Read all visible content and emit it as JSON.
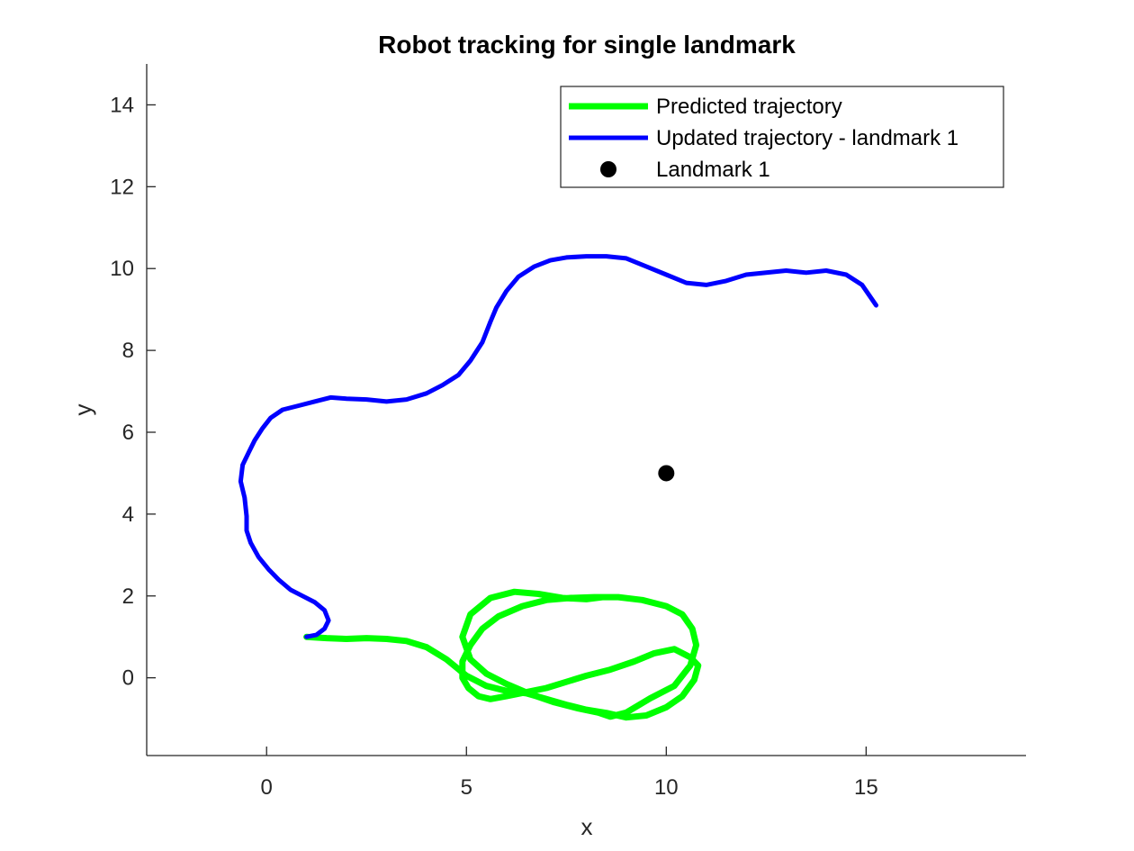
{
  "chart_data": {
    "type": "line",
    "title": "Robot tracking for single landmark",
    "xlabel": "x",
    "ylabel": "y",
    "xlim": [
      -3,
      19
    ],
    "ylim": [
      -1.9,
      15
    ],
    "xticks": [
      0,
      5,
      10,
      15
    ],
    "yticks": [
      0,
      2,
      4,
      6,
      8,
      10,
      12,
      14
    ],
    "grid": false,
    "legend_position": "top-right",
    "series": [
      {
        "name": "Predicted trajectory",
        "color": "#00ff00",
        "marker": "none",
        "x": [
          1,
          1.5,
          2,
          2.5,
          3,
          3.5,
          4,
          4.5,
          5,
          5.5,
          6,
          6.5,
          7,
          7.5,
          8,
          8.5,
          9,
          9.5,
          10,
          10.4,
          10.7,
          10.8,
          10.6,
          10.2,
          9.7,
          9.2,
          8.6,
          8,
          7.5,
          7,
          6.5,
          6,
          5.6,
          5.3,
          5.05,
          4.9,
          4.9,
          5.1,
          5.4,
          5.8,
          6.4,
          7,
          7.6,
          8.2,
          8.8,
          9.4,
          10,
          10.4,
          10.65,
          10.75,
          10.6,
          10.2,
          9.6,
          9,
          8.6,
          8.3,
          7.8,
          7.2,
          6.6,
          6,
          5.5,
          5.1,
          4.9,
          5.1,
          5.6,
          6.2,
          6.8,
          7.4,
          8,
          8.4
        ],
        "y": [
          1,
          0.97,
          0.95,
          0.97,
          0.95,
          0.9,
          0.75,
          0.45,
          0.05,
          -0.2,
          -0.32,
          -0.38,
          -0.52,
          -0.66,
          -0.78,
          -0.86,
          -0.97,
          -0.92,
          -0.72,
          -0.45,
          -0.05,
          0.3,
          0.5,
          0.7,
          0.6,
          0.4,
          0.2,
          0.05,
          -0.1,
          -0.25,
          -0.35,
          -0.45,
          -0.52,
          -0.45,
          -0.25,
          0,
          0.4,
          0.8,
          1.2,
          1.5,
          1.75,
          1.9,
          1.95,
          1.97,
          1.97,
          1.9,
          1.75,
          1.55,
          1.2,
          0.8,
          0.3,
          -0.2,
          -0.5,
          -0.85,
          -0.95,
          -0.85,
          -0.75,
          -0.6,
          -0.4,
          -0.15,
          0.1,
          0.45,
          1,
          1.55,
          1.95,
          2.1,
          2.05,
          1.95,
          1.92,
          1.97
        ]
      },
      {
        "name": "Updated trajectory - landmark 1",
        "color": "#0000ff",
        "marker": "none",
        "x": [
          1,
          1.25,
          1.45,
          1.55,
          1.45,
          1.2,
          0.9,
          0.6,
          0.3,
          0.05,
          -0.2,
          -0.4,
          -0.5,
          -0.5,
          -0.55,
          -0.65,
          -0.6,
          -0.45,
          -0.3,
          -0.1,
          0.1,
          0.4,
          0.8,
          1.2,
          1.6,
          2,
          2.5,
          3,
          3.5,
          4,
          4.4,
          4.8,
          5.1,
          5.4,
          5.6,
          5.75,
          6,
          6.3,
          6.7,
          7.1,
          7.5,
          8,
          8.5,
          9,
          9.5,
          10,
          10.5,
          11,
          11.5,
          12,
          12.5,
          13,
          13.5,
          14,
          14.5,
          14.9,
          15.25
        ],
        "y": [
          1,
          1.05,
          1.2,
          1.4,
          1.65,
          1.85,
          2,
          2.15,
          2.4,
          2.65,
          2.95,
          3.3,
          3.6,
          3.95,
          4.4,
          4.8,
          5.2,
          5.5,
          5.8,
          6.1,
          6.35,
          6.55,
          6.65,
          6.75,
          6.85,
          6.82,
          6.8,
          6.75,
          6.8,
          6.95,
          7.15,
          7.4,
          7.75,
          8.2,
          8.7,
          9.05,
          9.45,
          9.8,
          10.05,
          10.2,
          10.27,
          10.3,
          10.3,
          10.25,
          10.05,
          9.85,
          9.65,
          9.6,
          9.7,
          9.85,
          9.9,
          9.95,
          9.9,
          9.95,
          9.85,
          9.6,
          9.1
        ]
      },
      {
        "name": "Landmark 1",
        "color": "#000000",
        "marker": "circle",
        "x": [
          10
        ],
        "y": [
          5
        ]
      }
    ]
  }
}
